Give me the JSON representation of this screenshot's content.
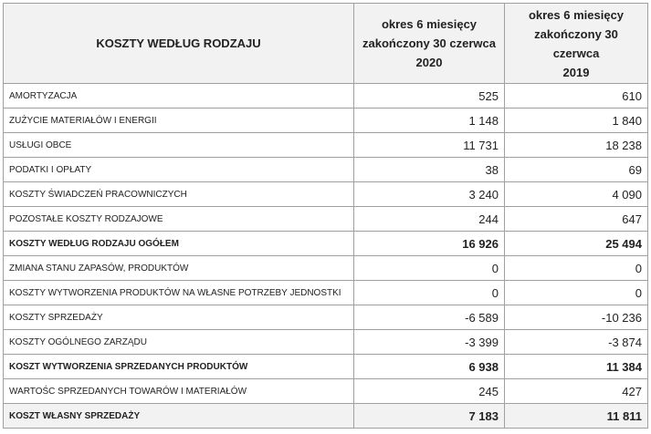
{
  "header": {
    "title": "KOSZTY WEDŁUG RODZAJU",
    "columns": [
      "okres 6 miesięcy\nzakończony 30 czerwca\n2020",
      "okres 6 miesięcy\nzakończony 30 czerwca\n2019"
    ]
  },
  "rows": [
    {
      "label": "AMORTYZACJA",
      "values": [
        "525",
        "610"
      ]
    },
    {
      "label": "ZUŻYCIE MATERIAŁÓW I ENERGII",
      "values": [
        "1 148",
        "1 840"
      ]
    },
    {
      "label": "USŁUGI OBCE",
      "values": [
        "11 731",
        "18 238"
      ]
    },
    {
      "label": "PODATKI I OPŁATY",
      "values": [
        "38",
        "69"
      ]
    },
    {
      "label": "KOSZTY ŚWIADCZEŃ PRACOWNICZYCH",
      "values": [
        "3 240",
        "4 090"
      ]
    },
    {
      "label": "POZOSTAŁE KOSZTY RODZAJOWE",
      "values": [
        "244",
        "647"
      ]
    },
    {
      "label": "KOSZTY WEDŁUG RODZAJU OGÓŁEM",
      "values": [
        "16 926",
        "25 494"
      ],
      "bold": true
    },
    {
      "label": "ZMIANA STANU ZAPASÓW, PRODUKTÓW",
      "values": [
        "0",
        "0"
      ]
    },
    {
      "label": "KOSZTY WYTWORZENIA PRODUKTÓW NA WŁASNE POTRZEBY JEDNOSTKI",
      "values": [
        "0",
        "0"
      ]
    },
    {
      "label": "KOSZTY SPRZEDAŻY",
      "values": [
        "-6 589",
        "-10 236"
      ]
    },
    {
      "label": "KOSZTY OGÓLNEGO ZARZĄDU",
      "values": [
        "-3 399",
        "-3 874"
      ]
    },
    {
      "label": "KOSZT WYTWORZENIA SPRZEDANYCH PRODUKTÓW",
      "values": [
        "6 938",
        "11 384"
      ],
      "bold": true
    },
    {
      "label": "WARTOŚC SPRZEDANYCH TOWARÓW I MATERIAŁÓW",
      "values": [
        "245",
        "427"
      ]
    },
    {
      "label": "KOSZT WŁASNY SPRZEDAŻY",
      "values": [
        "7 183",
        "11 811"
      ],
      "bold": true,
      "shaded": true
    }
  ]
}
